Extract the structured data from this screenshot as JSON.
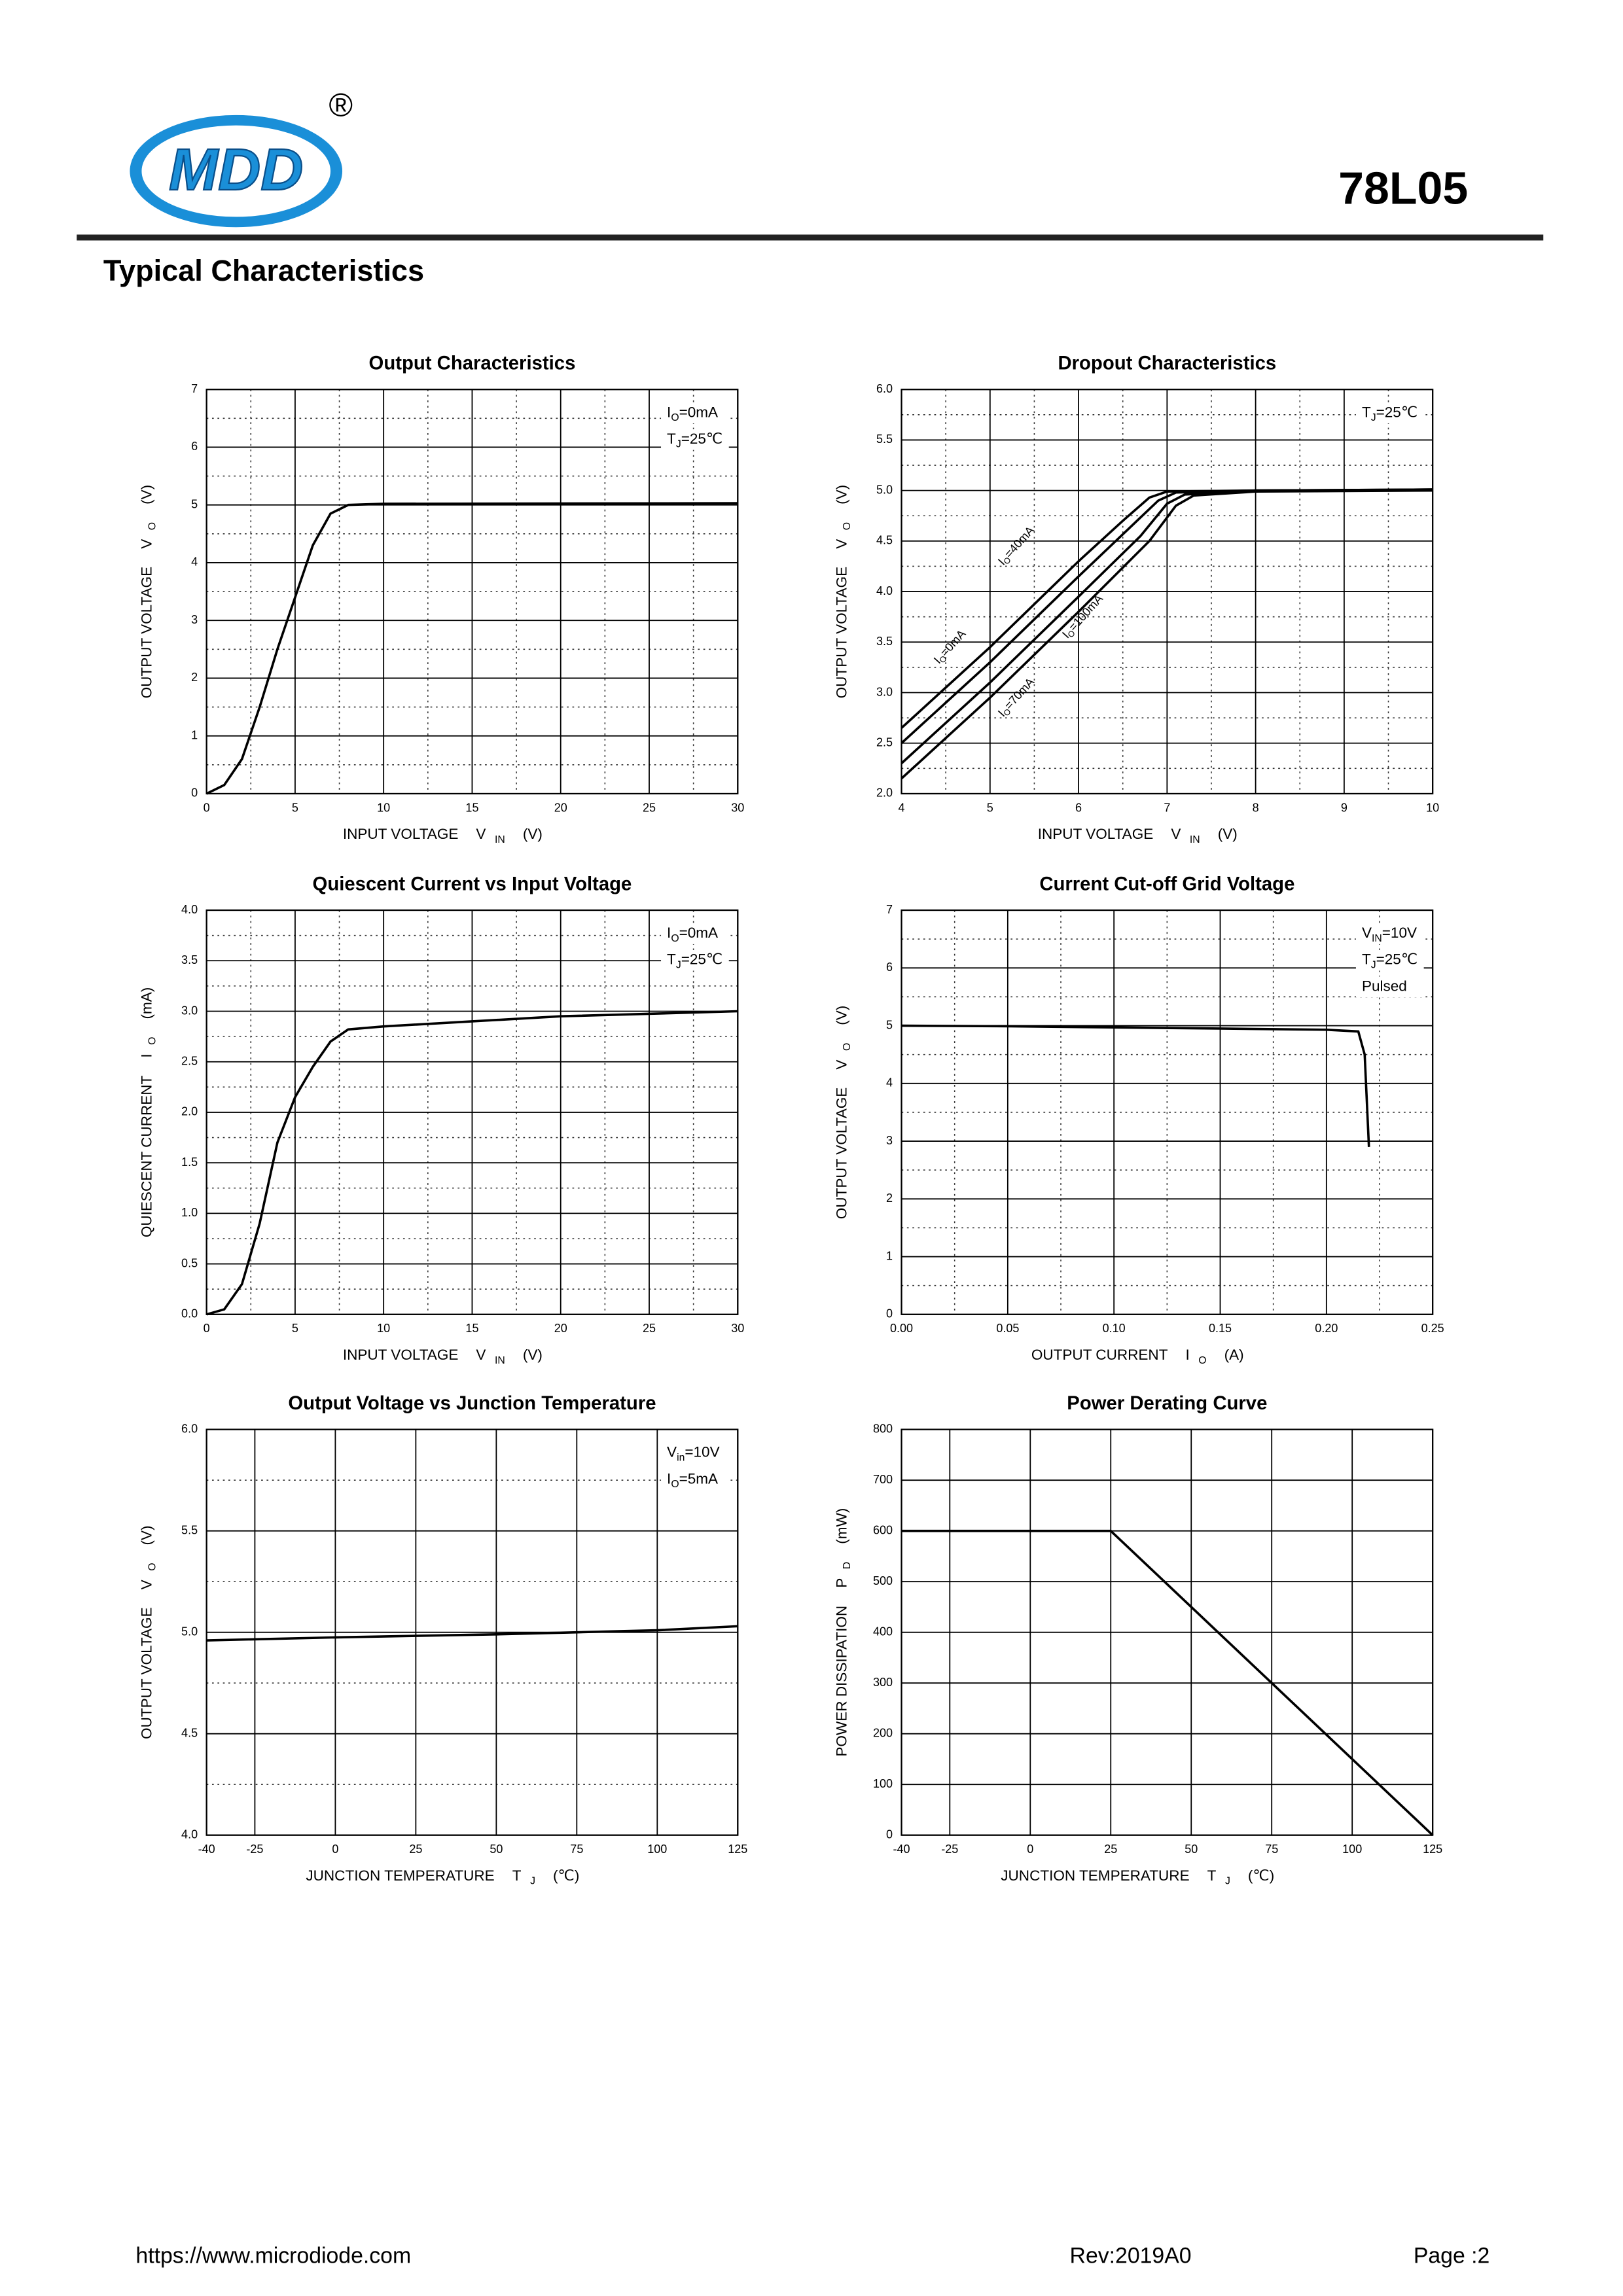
{
  "header": {
    "logo_text": "MDD",
    "registered_mark": "®",
    "part_number": "78L05",
    "section_title": "Typical Characteristics"
  },
  "chart_data": [
    {
      "type": "line",
      "title": "Output  Characteristics",
      "xlabel": {
        "text": "INPUT VOLTAGE",
        "sym": "V",
        "sub": "IN",
        "rest": "(V)"
      },
      "ylabel": {
        "text": "OUTPUT VOLTAGE",
        "sym": "V",
        "sub": "O",
        "rest": "(V)"
      },
      "annotations": [
        {
          "sym": "I",
          "sub": "O",
          "rest": "=0mA"
        },
        {
          "sym": "T",
          "sub": "J",
          "rest": "=25℃"
        }
      ],
      "xlim": [
        0,
        30
      ],
      "xticks": [
        0,
        5,
        10,
        15,
        20,
        25,
        30
      ],
      "ylim": [
        0,
        7
      ],
      "yticks": [
        0,
        1,
        2,
        3,
        4,
        5,
        6,
        7
      ],
      "grid": true,
      "minor_grid": [
        "x",
        "y"
      ],
      "series": [
        {
          "color": "#000000",
          "x": [
            0,
            1,
            2,
            3,
            4,
            5,
            6,
            7,
            8,
            10,
            30
          ],
          "values": [
            0,
            0.15,
            0.6,
            1.5,
            2.5,
            3.4,
            4.3,
            4.85,
            5.0,
            5.02,
            5.03
          ]
        }
      ]
    },
    {
      "type": "line",
      "title": "Dropout Characteristics",
      "xlabel": {
        "text": "INPUT VOLTAGE",
        "sym": "V",
        "sub": "IN",
        "rest": "(V)"
      },
      "ylabel": {
        "text": "OUTPUT VOLTAGE",
        "sym": "V",
        "sub": "O",
        "rest": "(V)"
      },
      "annotations": [
        {
          "sym": "T",
          "sub": "J",
          "rest": "=25℃"
        }
      ],
      "xlim": [
        4,
        10
      ],
      "xticks": [
        4,
        5,
        6,
        7,
        8,
        9,
        10
      ],
      "ylim": [
        2,
        6
      ],
      "yticks": [
        {
          "value": 2,
          "label": "2.0"
        },
        2.5,
        {
          "value": 3,
          "label": "3.0"
        },
        3.5,
        {
          "value": 4,
          "label": "4.0"
        },
        4.5,
        {
          "value": 5,
          "label": "5.0"
        },
        5.5,
        {
          "value": 6,
          "label": "6.0"
        }
      ],
      "grid": true,
      "minor_grid": [
        "x",
        "y"
      ],
      "series": [
        {
          "name_sym": "I",
          "name_sub": "O",
          "name": "=0mA",
          "color": "#000000",
          "x": [
            4,
            5,
            6,
            6.5,
            6.8,
            7,
            8,
            10
          ],
          "values": [
            2.65,
            3.45,
            4.3,
            4.7,
            4.93,
            4.99,
            5.0,
            5.01
          ]
        },
        {
          "name_sym": "I",
          "name_sub": "O",
          "name": "=40mA",
          "color": "#000000",
          "x": [
            4,
            5,
            6,
            6.6,
            6.9,
            7.1,
            8,
            10
          ],
          "values": [
            2.5,
            3.3,
            4.15,
            4.65,
            4.9,
            4.98,
            5.0,
            5.01
          ]
        },
        {
          "name_sym": "I",
          "name_sub": "O",
          "name": "=70mA",
          "color": "#000000",
          "x": [
            4,
            5,
            6,
            6.7,
            7,
            7.2,
            8,
            10
          ],
          "values": [
            2.3,
            3.1,
            3.95,
            4.55,
            4.87,
            4.96,
            5.0,
            5.0
          ]
        },
        {
          "name_sym": "I",
          "name_sub": "O",
          "name": "=100mA",
          "color": "#000000",
          "x": [
            4,
            5,
            6,
            6.8,
            7.1,
            7.3,
            8,
            10
          ],
          "values": [
            2.15,
            2.95,
            3.8,
            4.5,
            4.85,
            4.95,
            4.99,
            5.0
          ]
        }
      ]
    },
    {
      "type": "line",
      "title": "Quiescent Current vs Input Voltage",
      "xlabel": {
        "text": "INPUT VOLTAGE",
        "sym": "V",
        "sub": "IN",
        "rest": "(V)"
      },
      "ylabel": {
        "text": "QUIESCENT CURRENT",
        "sym": "I",
        "sub": "O",
        "rest": "(mA)"
      },
      "annotations": [
        {
          "sym": "I",
          "sub": "O",
          "rest": "=0mA"
        },
        {
          "sym": "T",
          "sub": "J",
          "rest": "=25℃"
        }
      ],
      "xlim": [
        0,
        30
      ],
      "xticks": [
        0,
        5,
        10,
        15,
        20,
        25,
        30
      ],
      "ylim": [
        0,
        4
      ],
      "yticks": [
        {
          "value": 0,
          "label": "0.0"
        },
        0.5,
        {
          "value": 1,
          "label": "1.0"
        },
        1.5,
        {
          "value": 2,
          "label": "2.0"
        },
        2.5,
        {
          "value": 3,
          "label": "3.0"
        },
        3.5,
        {
          "value": 4,
          "label": "4.0"
        }
      ],
      "grid": true,
      "minor_grid": [
        "x",
        "y"
      ],
      "series": [
        {
          "color": "#000000",
          "x": [
            0,
            1,
            2,
            3,
            4,
            5,
            6,
            7,
            8,
            10,
            15,
            20,
            30
          ],
          "values": [
            0,
            0.05,
            0.3,
            0.9,
            1.7,
            2.15,
            2.45,
            2.7,
            2.82,
            2.85,
            2.9,
            2.95,
            3.0
          ]
        }
      ]
    },
    {
      "type": "line",
      "title": "Current  Cut-off Grid Voltage",
      "xlabel": {
        "text": "OUTPUT CURRENT",
        "sym": "I",
        "sub": "O",
        "rest": "(A)"
      },
      "ylabel": {
        "text": "OUTPUT VOLTAGE",
        "sym": "V",
        "sub": "O",
        "rest": "(V)"
      },
      "annotations": [
        {
          "sym": "V",
          "sub": "IN",
          "rest": "=10V"
        },
        {
          "sym": "T",
          "sub": "J",
          "rest": "=25℃"
        },
        {
          "sym": "Pulsed"
        }
      ],
      "xlim": [
        0,
        0.25
      ],
      "xticks": [
        {
          "value": 0,
          "label": "0.00"
        },
        0.05,
        {
          "value": 0.1,
          "label": "0.10"
        },
        0.15,
        {
          "value": 0.2,
          "label": "0.20"
        },
        0.25
      ],
      "ylim": [
        0,
        7
      ],
      "yticks": [
        0,
        1,
        2,
        3,
        4,
        5,
        6,
        7
      ],
      "grid": true,
      "minor_grid": [
        "x",
        "y"
      ],
      "series": [
        {
          "color": "#000000",
          "x": [
            0,
            0.05,
            0.1,
            0.15,
            0.2,
            0.215,
            0.218,
            0.22
          ],
          "values": [
            5.0,
            4.99,
            4.97,
            4.95,
            4.93,
            4.9,
            4.5,
            2.9
          ]
        }
      ]
    },
    {
      "type": "line",
      "title": "Output Voltage vs Junction Temperature",
      "xlabel": {
        "text": "JUNCTION TEMPERATURE",
        "sym": "T",
        "sub": "J",
        "rest": "(℃)"
      },
      "ylabel": {
        "text": "OUTPUT VOLTAGE",
        "sym": "V",
        "sub": "O",
        "rest": "(V)"
      },
      "annotations": [
        {
          "sym": "V",
          "sub": "in",
          "rest": "=10V"
        },
        {
          "sym": "I",
          "sub": "O",
          "rest": "=5mA"
        }
      ],
      "xlim": [
        -40,
        125
      ],
      "xticks": [
        -40,
        -25,
        0,
        25,
        50,
        75,
        100,
        125
      ],
      "ylim": [
        4,
        6
      ],
      "yticks": [
        {
          "value": 4,
          "label": "4.0"
        },
        4.5,
        {
          "value": 5,
          "label": "5.0"
        },
        5.5,
        {
          "value": 6,
          "label": "6.0"
        }
      ],
      "grid": true,
      "minor_grid": [
        "y"
      ],
      "series": [
        {
          "color": "#000000",
          "x": [
            -40,
            0,
            50,
            75,
            100,
            125
          ],
          "values": [
            4.96,
            4.975,
            4.99,
            5.0,
            5.01,
            5.03
          ]
        }
      ]
    },
    {
      "type": "line",
      "title": "Power Derating Curve",
      "xlabel": {
        "text": "JUNCTION TEMPERATURE",
        "sym": "T",
        "sub": "J",
        "rest": "(℃)"
      },
      "ylabel": {
        "text": "POWER DISSIPATION",
        "sym": "P",
        "sub": "D",
        "rest": "(mW)"
      },
      "annotations": [],
      "xlim": [
        -40,
        125
      ],
      "xticks": [
        -40,
        -25,
        0,
        25,
        50,
        75,
        100,
        125
      ],
      "ylim": [
        0,
        800
      ],
      "yticks": [
        0,
        100,
        200,
        300,
        400,
        500,
        600,
        700,
        800
      ],
      "grid": true,
      "minor_grid": [],
      "series": [
        {
          "color": "#000000",
          "x": [
            -40,
            25,
            125
          ],
          "values": [
            600,
            600,
            0
          ]
        }
      ]
    }
  ],
  "footer": {
    "url": "https://www.microdiode.com",
    "revision": "Rev:2019A0",
    "page": "Page :2"
  }
}
